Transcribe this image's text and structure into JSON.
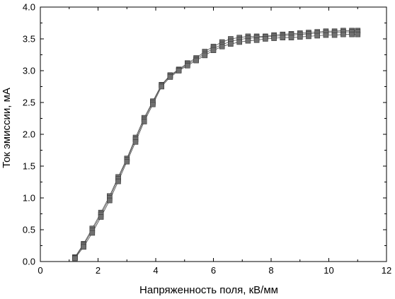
{
  "chart_data": {
    "type": "scatter",
    "xlabel": "Напряженность поля, кВ/мм",
    "ylabel": "Ток эмиссии, мА",
    "xlim": [
      0,
      12
    ],
    "ylim": [
      0.0,
      4.0
    ],
    "x_ticks": [
      0,
      2,
      4,
      6,
      8,
      10,
      12
    ],
    "x_tick_labels": [
      "0",
      "2",
      "4",
      "6",
      "8",
      "10",
      "12"
    ],
    "y_ticks": [
      0.0,
      0.5,
      1.0,
      1.5,
      2.0,
      2.5,
      3.0,
      3.5,
      4.0
    ],
    "y_tick_labels": [
      "0.0",
      "0.5",
      "1.0",
      "1.5",
      "2.0",
      "2.5",
      "3.0",
      "3.5",
      "4.0"
    ],
    "grid": false,
    "colors": {
      "marker": "#707070",
      "line": "#505050",
      "marker_stroke": "#333333"
    },
    "series": [
      {
        "x": [
          1.2,
          1.5,
          1.8,
          2.1,
          2.4,
          2.7,
          3.0,
          3.3,
          3.6,
          3.9,
          4.2,
          4.5,
          4.8,
          5.1,
          5.4,
          5.7,
          6.0,
          6.3,
          6.6,
          6.9,
          7.2,
          7.5,
          7.8,
          8.1,
          8.4,
          8.7,
          9.0,
          9.3,
          9.6,
          9.9,
          10.2,
          10.5,
          10.8,
          11.0
        ],
        "y": [
          0.07,
          0.28,
          0.52,
          0.77,
          1.03,
          1.33,
          1.62,
          1.95,
          2.26,
          2.52,
          2.78,
          2.93,
          3.02,
          3.12,
          3.2,
          3.3,
          3.38,
          3.45,
          3.5,
          3.52,
          3.54,
          3.54,
          3.54,
          3.56,
          3.57,
          3.58,
          3.59,
          3.6,
          3.61,
          3.62,
          3.62,
          3.63,
          3.63,
          3.63
        ]
      },
      {
        "x": [
          1.2,
          1.5,
          1.8,
          2.1,
          2.4,
          2.7,
          3.0,
          3.3,
          3.6,
          3.9,
          4.2,
          4.5,
          4.8,
          5.1,
          5.4,
          5.7,
          6.0,
          6.3,
          6.6,
          6.9,
          7.2,
          7.5,
          7.8,
          8.1,
          8.4,
          8.7,
          9.0,
          9.3,
          9.6,
          9.9,
          10.2,
          10.5,
          10.8,
          11.0
        ],
        "y": [
          0.06,
          0.26,
          0.49,
          0.74,
          1.0,
          1.3,
          1.6,
          1.92,
          2.23,
          2.5,
          2.77,
          2.92,
          3.01,
          3.1,
          3.18,
          3.27,
          3.35,
          3.41,
          3.46,
          3.49,
          3.51,
          3.52,
          3.53,
          3.54,
          3.55,
          3.56,
          3.57,
          3.58,
          3.59,
          3.6,
          3.6,
          3.61,
          3.61,
          3.61
        ]
      },
      {
        "x": [
          1.2,
          1.5,
          1.8,
          2.1,
          2.4,
          2.7,
          3.0,
          3.3,
          3.6,
          3.9,
          4.2,
          4.5,
          4.8,
          5.1,
          5.4,
          5.7,
          6.0,
          6.3,
          6.6,
          6.9,
          7.2,
          7.5,
          7.8,
          8.1,
          8.4,
          8.7,
          9.0,
          9.3,
          9.6,
          9.9,
          10.2,
          10.5,
          10.8,
          11.0
        ],
        "y": [
          0.05,
          0.23,
          0.45,
          0.7,
          0.96,
          1.26,
          1.57,
          1.88,
          2.2,
          2.47,
          2.75,
          2.9,
          3.0,
          3.08,
          3.16,
          3.24,
          3.32,
          3.38,
          3.42,
          3.45,
          3.47,
          3.48,
          3.5,
          3.51,
          3.52,
          3.52,
          3.53,
          3.54,
          3.55,
          3.56,
          3.56,
          3.57,
          3.57,
          3.57
        ]
      }
    ]
  }
}
